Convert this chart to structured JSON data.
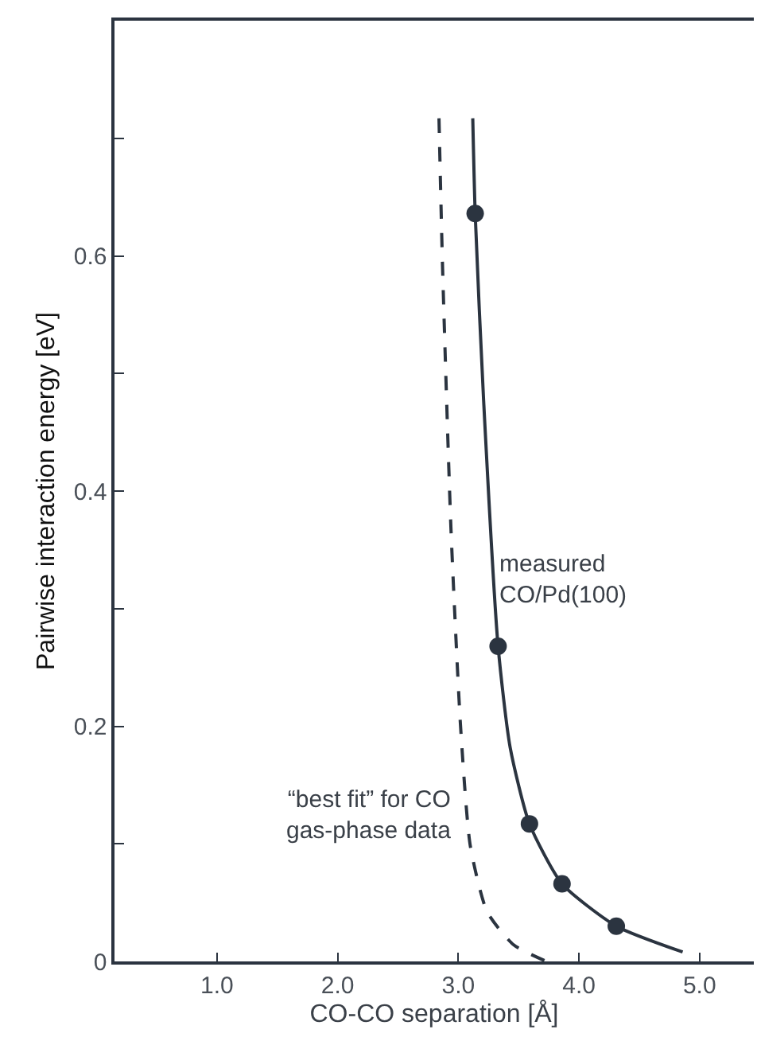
{
  "chart_data": {
    "type": "line",
    "xlabel": "CO-CO separation [Å]",
    "ylabel": "Pairwise interaction energy [eV]",
    "xlim": [
      0.15,
      5.45
    ],
    "ylim": [
      0,
      0.8
    ],
    "xticks": [
      {
        "value": 1,
        "label": "1.0"
      },
      {
        "value": 2,
        "label": "2.0"
      },
      {
        "value": 3,
        "label": "3.0"
      },
      {
        "value": 4,
        "label": "4.0"
      },
      {
        "value": 5,
        "label": "5.0"
      }
    ],
    "yticks": [
      0,
      {
        "value": 0.1,
        "label": null
      },
      {
        "value": 0.2,
        "label": "0.2"
      },
      {
        "value": 0.3,
        "label": null
      },
      {
        "value": 0.4,
        "label": "0.4"
      },
      {
        "value": 0.5,
        "label": null
      },
      {
        "value": 0.6,
        "label": "0.6"
      },
      {
        "value": 0.7,
        "label": null
      }
    ],
    "grid": false,
    "series": [
      {
        "line_style": "dashed",
        "marker": "none",
        "color": "#2b3440",
        "x": [
          2.84,
          2.87,
          2.94,
          3.02,
          3.1,
          3.24,
          3.46,
          3.73
        ],
        "values": [
          0.717,
          0.589,
          0.366,
          0.198,
          0.098,
          0.042,
          0.014,
          0
        ]
      },
      {
        "line_style": "solid",
        "marker": "none",
        "color": "#2b3440",
        "x": [
          3.12,
          3.14,
          3.21,
          3.33,
          3.43,
          3.59,
          3.86,
          4.31,
          4.86
        ],
        "values": [
          0.717,
          0.636,
          0.477,
          0.268,
          0.182,
          0.117,
          0.066,
          0.03,
          0.008
        ]
      },
      {
        "type": "scatter",
        "marker": "circle",
        "color": "#2b3440",
        "x": [
          3.14,
          3.33,
          3.59,
          3.86,
          4.31
        ],
        "values": [
          0.636,
          0.268,
          0.117,
          0.066,
          0.03
        ]
      }
    ],
    "annotations": [
      {
        "text": "measured\nCO/Pd(100)",
        "x": 3.32,
        "y": 0.324
      },
      "“best fit” for CO\ngas-phase data"
    ]
  }
}
